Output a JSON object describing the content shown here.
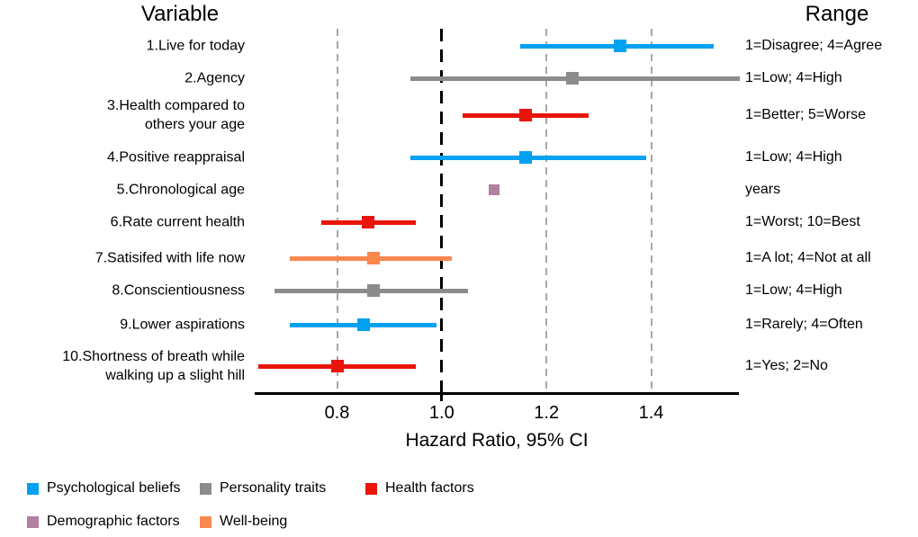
{
  "headers": {
    "variable": "Variable",
    "range": "Range"
  },
  "axis": {
    "title": "Hazard Ratio, 95% CI",
    "ticks": [
      {
        "value": 0.8,
        "label": "0.8"
      },
      {
        "value": 1.0,
        "label": "1.0"
      },
      {
        "value": 1.2,
        "label": "1.2"
      },
      {
        "value": 1.4,
        "label": "1.4"
      }
    ]
  },
  "palette": {
    "psychological": "#00a1f1",
    "personality": "#8c8c8c",
    "health": "#e9150a",
    "demographic": "#b27f9f",
    "wellbeing": "#f9884f"
  },
  "legend": [
    {
      "label": "Psychological beliefs",
      "category": "psychological"
    },
    {
      "label": "Personality traits",
      "category": "personality"
    },
    {
      "label": "Health factors",
      "category": "health"
    },
    {
      "label": "Demographic factors",
      "category": "demographic"
    },
    {
      "label": "Well-being",
      "category": "wellbeing"
    }
  ],
  "chart_data": {
    "type": "scatter",
    "subtype": "forest-plot",
    "xlabel": "Hazard Ratio, 95% CI",
    "xlim": [
      0.64,
      1.57
    ],
    "reference_line": 1.0,
    "gridlines": [
      0.8,
      1.2,
      1.4
    ],
    "grid": true,
    "legend_position": "bottom",
    "rows": [
      {
        "label": "1.Live for today",
        "hr": 1.34,
        "ci_low": 1.15,
        "ci_high": 1.52,
        "category": "psychological",
        "range": "1=Disagree; 4=Agree"
      },
      {
        "label": "2.Agency",
        "hr": 1.25,
        "ci_low": 0.94,
        "ci_high": 1.57,
        "category": "personality",
        "range": "1=Low; 4=High"
      },
      {
        "label": "3.Health compared to\nothers your age",
        "hr": 1.16,
        "ci_low": 1.04,
        "ci_high": 1.28,
        "category": "health",
        "range": "1=Better; 5=Worse"
      },
      {
        "label": "4.Positive reappraisal",
        "hr": 1.16,
        "ci_low": 0.94,
        "ci_high": 1.39,
        "category": "psychological",
        "range": "1=Low; 4=High"
      },
      {
        "label": "5.Chronological age",
        "hr": 1.1,
        "ci_low": 1.09,
        "ci_high": 1.11,
        "category": "demographic",
        "range": "years"
      },
      {
        "label": "6.Rate current health",
        "hr": 0.86,
        "ci_low": 0.77,
        "ci_high": 0.95,
        "category": "health",
        "range": "1=Worst; 10=Best"
      },
      {
        "label": "7.Satisifed with life now",
        "hr": 0.87,
        "ci_low": 0.71,
        "ci_high": 1.02,
        "category": "wellbeing",
        "range": "1=A lot; 4=Not at all"
      },
      {
        "label": "8.Conscientiousness",
        "hr": 0.87,
        "ci_low": 0.68,
        "ci_high": 1.05,
        "category": "personality",
        "range": "1=Low; 4=High"
      },
      {
        "label": "9.Lower aspirations",
        "hr": 0.85,
        "ci_low": 0.71,
        "ci_high": 0.99,
        "category": "psychological",
        "range": "1=Rarely; 4=Often"
      },
      {
        "label": "10.Shortness of breath while\nwalking up a slight hill",
        "hr": 0.8,
        "ci_low": 0.65,
        "ci_high": 0.95,
        "category": "health",
        "range": "1=Yes; 2=No"
      }
    ]
  }
}
